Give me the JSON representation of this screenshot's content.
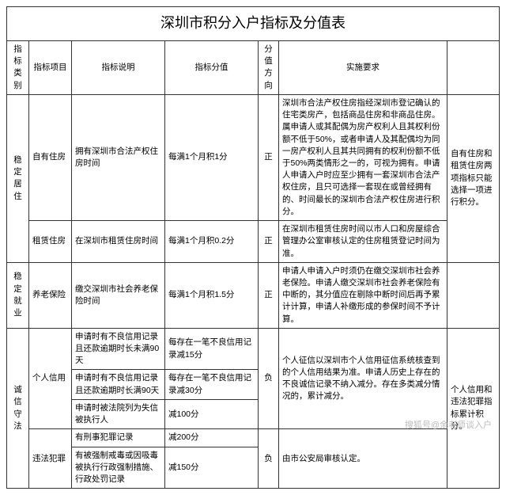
{
  "title": "深圳市积分入户指标及分值表",
  "columns": {
    "cat": "指标类别",
    "item": "指标项目",
    "desc": "指标说明",
    "score": "指标分值",
    "dir": "分值方向",
    "req": "实施要求",
    "note": ""
  },
  "dir": {
    "pos": "正",
    "neg": "负"
  },
  "cat": {
    "juzhu": "稳定居住",
    "jiuye": "稳定就业",
    "chengxin": "诚信守法"
  },
  "items": {
    "ziyou": "自有住房",
    "zulin": "租赁住房",
    "yanglao": "养老保险",
    "xinyong": "个人信用",
    "weifa": "违法犯罪"
  },
  "desc": {
    "ziyou": "拥有深圳市合法产权住房时间",
    "zulin": "在深圳市租赁住房时间",
    "yanglao": "缴交深圳市社会养老保险时间",
    "xy1": "申请时有不良信用记录且还款逾期时长未满90天",
    "xy2": "申请时有不良信用记录且还款逾期时长满90天",
    "xy3": "申请时被法院列为失信被执行人",
    "wf1": "有刑事犯罪记录",
    "wf2": "有被强制戒毒或因吸毒被执行行政强制措施、行政处罚记录"
  },
  "score": {
    "ziyou": "每满1个月积1分",
    "zulin": "每满1个月积0.2分",
    "yanglao": "每满1个月积1.5分",
    "xy1": "每存在一笔不良信用记录减15分",
    "xy2": "每存在一笔不良信用记录减30分",
    "xy3": "减100分",
    "wf1": "减200分",
    "wf2": "减150分"
  },
  "req": {
    "ziyou": "深圳市合法产权住房指经深圳市登记确认的住宅类房产，包括商品住房和非商品住房。属申请人或其配偶为房产权利人且其权利份额不低于50%，或者申请人及其配偶均为同一房产权利人且其共同拥有的权利份额不低于50%两类情形之一的，可视为拥有。申请人申请入户时应至少拥有一套深圳市合法产权住房，且只可选择一套现在或曾经拥有的、时间最长的深圳市合法产权住房进行积分。",
    "zulin": "在深圳市租赁住房时间以市人口和房屋综合管理办公室审核认定的住房租赁登记时间为准。",
    "yanglao": "申请人申请入户时须仍在缴交深圳市社会养老保险。申请人缴交深圳市社会养老保险有中断的，其分值应在剔除中断时间后再予累计计算，申请人补缴形成的参保时间不予计算。",
    "xinyong": "个人征信以深圳市个人信用征信系统核查到的个人信用结果为准。申请人历史上存在的不良诚信记录不纳入减分。存在多类减分情况的，累计减分。",
    "weifa": "由市公安局审核认定。"
  },
  "note": {
    "juzhu": "自有住房和租赁住房两项指标只能选择一项进行积分。",
    "chengxin": "个人信用和违法犯罪指标累计积分。"
  },
  "watermark": "搜狐号@余老师谈入户"
}
